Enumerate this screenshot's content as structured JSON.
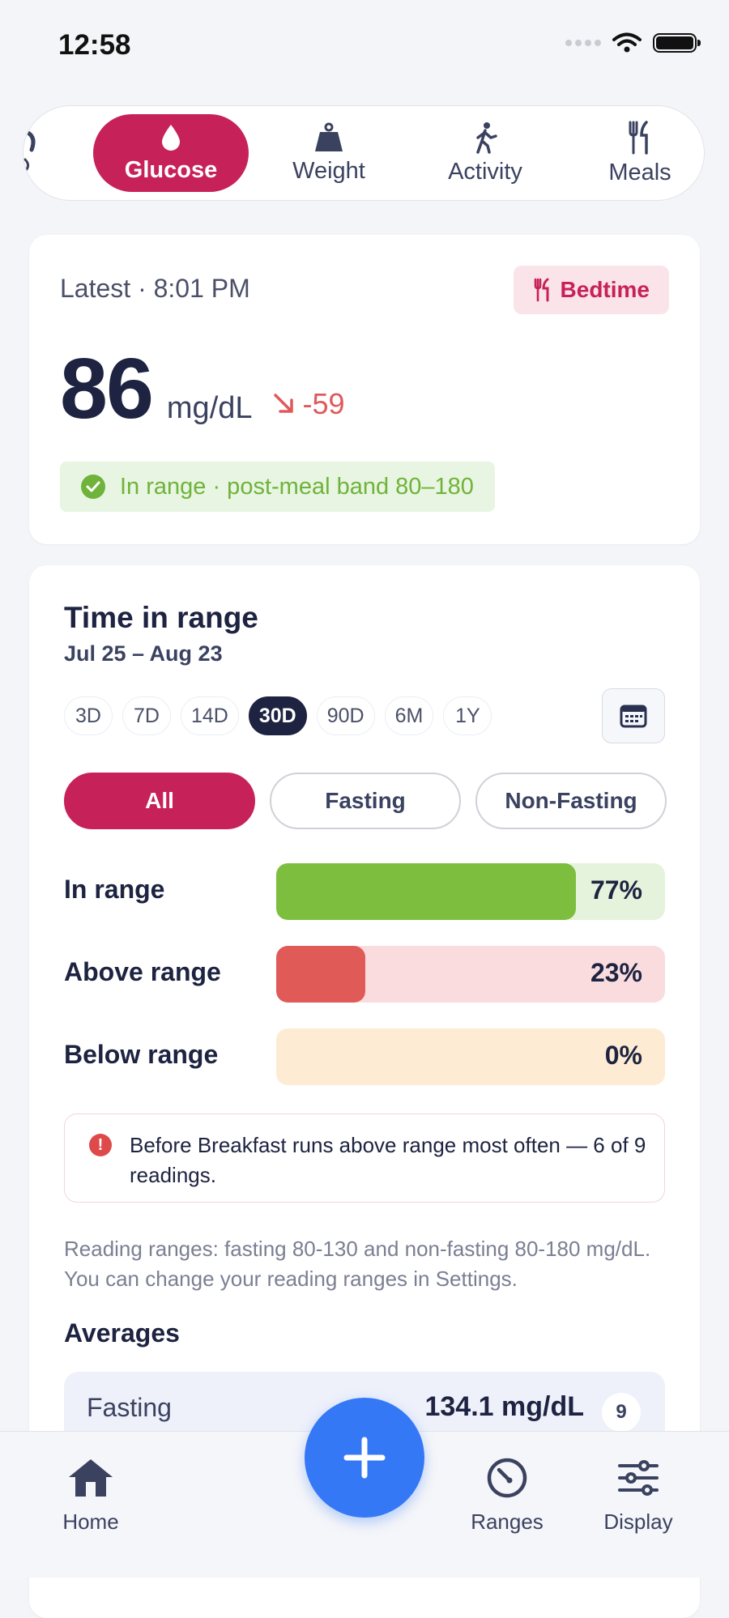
{
  "status_bar": {
    "time": "12:58"
  },
  "tabs": [
    {
      "label": "Glucose",
      "icon": "drop-icon",
      "active": true
    },
    {
      "label": "Weight",
      "icon": "weight-icon",
      "active": false
    },
    {
      "label": "Activity",
      "icon": "walking-icon",
      "active": false
    },
    {
      "label": "Meals",
      "icon": "fork-knife-icon",
      "active": false
    }
  ],
  "latest": {
    "label": "Latest · 8:01 PM",
    "tag": "Bedtime",
    "value": "86",
    "unit": "mg/dL",
    "delta": "-59",
    "status": "In range · post-meal band 80–180"
  },
  "time_in_range": {
    "title": "Time in range",
    "dates": "Jul 25 – Aug 23",
    "periods": [
      "3D",
      "7D",
      "14D",
      "30D",
      "90D",
      "6M",
      "1Y"
    ],
    "active_period": "30D",
    "filters": [
      "All",
      "Fasting",
      "Non-Fasting"
    ],
    "active_filter": "All",
    "ranges": [
      {
        "label": "In range",
        "percent_text": "77%",
        "fraction": 0.77,
        "fill_color": "#7dbe3f",
        "track_color": "#e5f3dc"
      },
      {
        "label": "Above range",
        "percent_text": "23%",
        "fraction": 0.23,
        "fill_color": "#e05a57",
        "track_color": "#fadcdf"
      },
      {
        "label": "Below range",
        "percent_text": "0%",
        "fraction": 0.0,
        "fill_color": "#f2b36a",
        "track_color": "#fdebd3"
      }
    ],
    "insight": "Before Breakfast runs above range most often — 6 of 9 readings.",
    "note": "Reading ranges: fasting 80-130 and non-fasting 80-180 mg/dL. You can change your reading ranges in Settings.",
    "averages_title": "Averages",
    "averages": [
      {
        "label": "Fasting",
        "value": "134.1 mg/dL",
        "count": "9"
      }
    ]
  },
  "bottom_nav": {
    "home": "Home",
    "ranges": "Ranges",
    "display": "Display"
  },
  "colors": {
    "accent": "#c7215a",
    "fab": "#3478f6",
    "navy": "#1d2340",
    "success": "#6fb33a",
    "danger": "#e0585a"
  }
}
